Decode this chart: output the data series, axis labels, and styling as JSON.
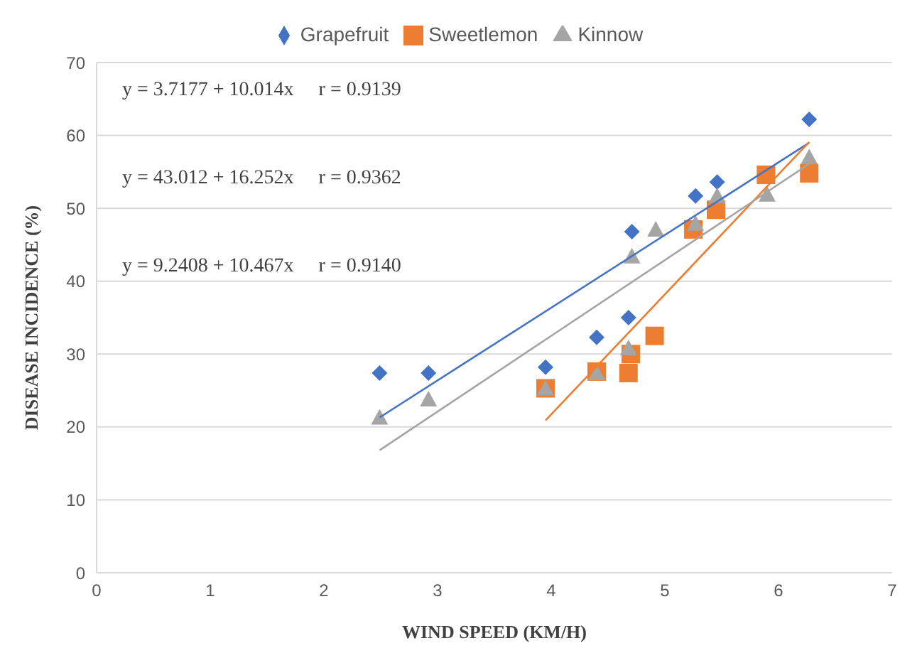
{
  "chart_data": {
    "type": "scatter",
    "xlabel": "WIND SPEED (KM/H)",
    "ylabel": "DISEASE INCIDENCE (%)",
    "xlim": [
      0,
      7
    ],
    "xticks": [
      0,
      1,
      2,
      3,
      4,
      5,
      6,
      7
    ],
    "ylim": [
      0,
      70
    ],
    "yticks": [
      0,
      10,
      20,
      30,
      40,
      50,
      60,
      70
    ],
    "grid": "y",
    "legend": "top",
    "annotations": [
      "y = 3.7177 + 10.014x     r = 0.9139",
      "y = 43.012 + 16.252x     r = 0.9362",
      "y = 9.2408 + 10.467x     r = 0.9140"
    ],
    "series": [
      {
        "name": "Grapefruit",
        "color": "#4472c4",
        "marker": "diamond",
        "x": [
          2.49,
          2.92,
          3.95,
          4.4,
          4.68,
          4.71,
          5.27,
          5.46,
          6.27
        ],
        "values": [
          27.4,
          27.4,
          28.2,
          32.3,
          35.0,
          46.8,
          51.7,
          53.6,
          62.2
        ]
      },
      {
        "name": "Sweetlemon",
        "color": "#ed7d31",
        "marker": "square",
        "x": [
          3.95,
          4.4,
          4.68,
          4.7,
          4.91,
          5.25,
          5.45,
          5.89,
          6.27
        ],
        "values": [
          25.3,
          27.6,
          27.4,
          30.0,
          32.5,
          47.1,
          49.8,
          54.6,
          54.8
        ]
      },
      {
        "name": "Kinnow",
        "color": "#a5a5a5",
        "marker": "triangle",
        "x": [
          2.49,
          2.92,
          3.95,
          4.4,
          4.68,
          4.71,
          4.92,
          5.27,
          5.46,
          5.9,
          6.27
        ],
        "values": [
          21.3,
          23.8,
          25.3,
          27.4,
          30.8,
          43.4,
          47.1,
          47.9,
          51.7,
          51.9,
          57.0
        ]
      },
      {
        "type": "line",
        "color": "#4472c4",
        "marker": "none",
        "x": [
          2.49,
          6.27
        ],
        "values": [
          21.3,
          59.0
        ]
      },
      {
        "type": "line",
        "color": "#ed7d31",
        "marker": "none",
        "x": [
          3.95,
          6.27
        ],
        "values": [
          20.9,
          59.1
        ]
      },
      {
        "type": "line",
        "color": "#a5a5a5",
        "marker": "none",
        "x": [
          2.49,
          6.27
        ],
        "values": [
          16.8,
          56.1
        ]
      }
    ]
  }
}
